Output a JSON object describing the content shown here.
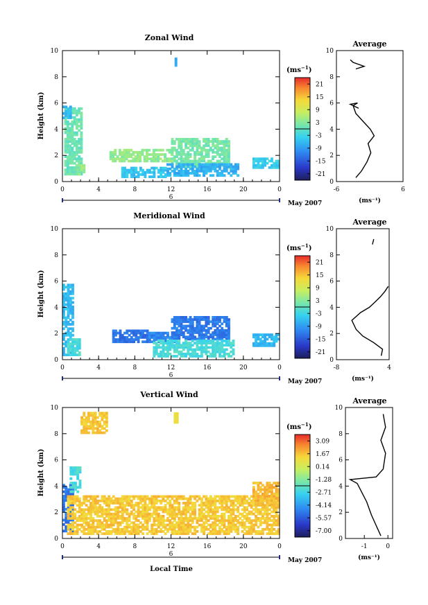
{
  "figure": {
    "xlabel": "Local Time",
    "date_label": "May 2007",
    "x_ticks": [
      "0",
      "4",
      "8",
      "12",
      "16",
      "20",
      "0"
    ],
    "day_marker": "6",
    "ylabel": "Height (km)",
    "y_ticks": [
      "0",
      "2",
      "4",
      "6",
      "8",
      "10"
    ],
    "cbar_unit_base": "(ms",
    "cbar_unit_exp": "−1",
    "cbar_unit_close": ")",
    "avg_title": "Average"
  },
  "chart_data": [
    {
      "type": "heatmap",
      "title": "Zonal Wind",
      "xlabel": "",
      "ylabel": "Height (km)",
      "xlim": [
        0,
        24
      ],
      "ylim": [
        0,
        10
      ],
      "colorbar": {
        "min": -24,
        "max": 24,
        "ticks": [
          "21",
          "15",
          "9",
          "3",
          "-3",
          "-9",
          "-15",
          "-21"
        ]
      },
      "regions": [
        {
          "x": [
            0.2,
            2.0
          ],
          "y": [
            0.5,
            5.6
          ],
          "v": 1
        },
        {
          "x": [
            0.0,
            0.8
          ],
          "y": [
            4.8,
            5.7
          ],
          "v": -6
        },
        {
          "x": [
            1.5,
            2.5
          ],
          "y": [
            0.5,
            1.2
          ],
          "v": 4
        },
        {
          "x": [
            5.2,
            12.0
          ],
          "y": [
            1.5,
            2.4
          ],
          "v": 4
        },
        {
          "x": [
            12.0,
            18.5
          ],
          "y": [
            1.0,
            3.2
          ],
          "v": 2
        },
        {
          "x": [
            6.5,
            11.5
          ],
          "y": [
            0.3,
            1.1
          ],
          "v": -5
        },
        {
          "x": [
            11.5,
            19.5
          ],
          "y": [
            0.4,
            1.3
          ],
          "v": -7
        },
        {
          "x": [
            21.0,
            24.0
          ],
          "y": [
            1.0,
            1.8
          ],
          "v": -4
        },
        {
          "x": [
            12.4,
            12.6
          ],
          "y": [
            8.8,
            9.4
          ],
          "v": -8
        }
      ],
      "average_profile": {
        "xlim": [
          -6,
          6
        ],
        "xticks": [
          "-6",
          "6"
        ],
        "xlabel": "(ms⁻¹)",
        "points": [
          [
            -2.5,
            0.3
          ],
          [
            -1.5,
            0.8
          ],
          [
            -0.5,
            1.5
          ],
          [
            0.2,
            2.2
          ],
          [
            -0.3,
            2.9
          ],
          [
            0.8,
            3.5
          ],
          [
            0.1,
            4.0
          ],
          [
            -1.2,
            4.6
          ],
          [
            -2.5,
            5.2
          ],
          [
            -3.0,
            5.8
          ],
          [
            -2.2,
            6.0
          ],
          [
            -3.5,
            5.9
          ],
          [
            -2.0,
            5.6
          ]
        ]
      },
      "average_profile_upper": [
        [
          -2.5,
          8.6
        ],
        [
          -1.0,
          8.8
        ],
        [
          -3.0,
          9.1
        ],
        [
          -3.5,
          9.3
        ]
      ]
    },
    {
      "type": "heatmap",
      "title": "Meridional Wind",
      "xlabel": "",
      "ylabel": "Height (km)",
      "xlim": [
        0,
        24
      ],
      "ylim": [
        0,
        10
      ],
      "colorbar": {
        "min": -24,
        "max": 24,
        "ticks": [
          "21",
          "15",
          "9",
          "3",
          "-3",
          "-9",
          "-15",
          "-21"
        ]
      },
      "regions": [
        {
          "x": [
            0.0,
            1.2
          ],
          "y": [
            0.3,
            5.7
          ],
          "v": -6
        },
        {
          "x": [
            0.5,
            2.0
          ],
          "y": [
            0.3,
            1.5
          ],
          "v": -2
        },
        {
          "x": [
            5.5,
            9.5
          ],
          "y": [
            1.3,
            2.3
          ],
          "v": -13
        },
        {
          "x": [
            9.5,
            12.5
          ],
          "y": [
            1.3,
            2.0
          ],
          "v": -11
        },
        {
          "x": [
            12.0,
            18.5
          ],
          "y": [
            1.5,
            3.2
          ],
          "v": -12
        },
        {
          "x": [
            10.0,
            19.0
          ],
          "y": [
            0.2,
            1.5
          ],
          "v": -2
        },
        {
          "x": [
            21.0,
            24.0
          ],
          "y": [
            1.0,
            2.0
          ],
          "v": -6
        }
      ],
      "average_profile": {
        "xlim": [
          -8,
          4
        ],
        "xticks": [
          "-8",
          "4"
        ],
        "xlabel": "(ms⁻¹)",
        "points": [
          [
            2.2,
            0.3
          ],
          [
            2.5,
            0.8
          ],
          [
            0.5,
            1.3
          ],
          [
            -2.0,
            1.8
          ],
          [
            -3.5,
            2.3
          ],
          [
            -4.5,
            3.0
          ],
          [
            -2.5,
            3.6
          ],
          [
            -0.5,
            4.0
          ],
          [
            0.8,
            4.4
          ],
          [
            2.0,
            4.8
          ],
          [
            3.0,
            5.2
          ],
          [
            3.8,
            5.6
          ]
        ]
      },
      "average_profile_upper": [
        [
          0.2,
          8.8
        ],
        [
          0.5,
          9.2
        ]
      ]
    },
    {
      "type": "heatmap",
      "title": "Vertical Wind",
      "xlabel": "Local Time",
      "ylabel": "Height (km)",
      "xlim": [
        0,
        24
      ],
      "ylim": [
        0,
        10
      ],
      "colorbar": {
        "min": -7.8,
        "max": 3.8,
        "ticks": [
          "3.09",
          "1.67",
          "0.14",
          "-1.28",
          "-2.71",
          "-4.14",
          "-5.57",
          "-7.00"
        ]
      },
      "regions": [
        {
          "x": [
            0.0,
            1.2
          ],
          "y": [
            0.5,
            4.0
          ],
          "v": -5
        },
        {
          "x": [
            0.8,
            2.0
          ],
          "y": [
            3.5,
            5.5
          ],
          "v": -2.5
        },
        {
          "x": [
            0.5,
            24.0
          ],
          "y": [
            0.3,
            3.2
          ],
          "v": 1.5
        },
        {
          "x": [
            21.0,
            24.0
          ],
          "y": [
            2.5,
            4.2
          ],
          "v": 1.8
        },
        {
          "x": [
            2.0,
            5.0
          ],
          "y": [
            8.0,
            9.5
          ],
          "v": 1.5
        },
        {
          "x": [
            12.3,
            12.7
          ],
          "y": [
            8.8,
            9.6
          ],
          "v": 1.0
        }
      ],
      "average_profile": {
        "xlim": [
          -1.8,
          0.2
        ],
        "xticks": [
          "-1",
          "0"
        ],
        "xlabel": "(ms⁻¹)",
        "points": [
          [
            -0.3,
            0.2
          ],
          [
            -0.5,
            1.0
          ],
          [
            -0.7,
            1.8
          ],
          [
            -0.9,
            2.8
          ],
          [
            -1.1,
            3.5
          ],
          [
            -1.3,
            4.2
          ],
          [
            -1.6,
            4.5
          ],
          [
            -0.5,
            4.7
          ],
          [
            -0.2,
            5.3
          ],
          [
            -0.1,
            6.5
          ],
          [
            -0.3,
            7.5
          ],
          [
            -0.1,
            8.5
          ],
          [
            -0.2,
            9.5
          ]
        ]
      }
    }
  ]
}
